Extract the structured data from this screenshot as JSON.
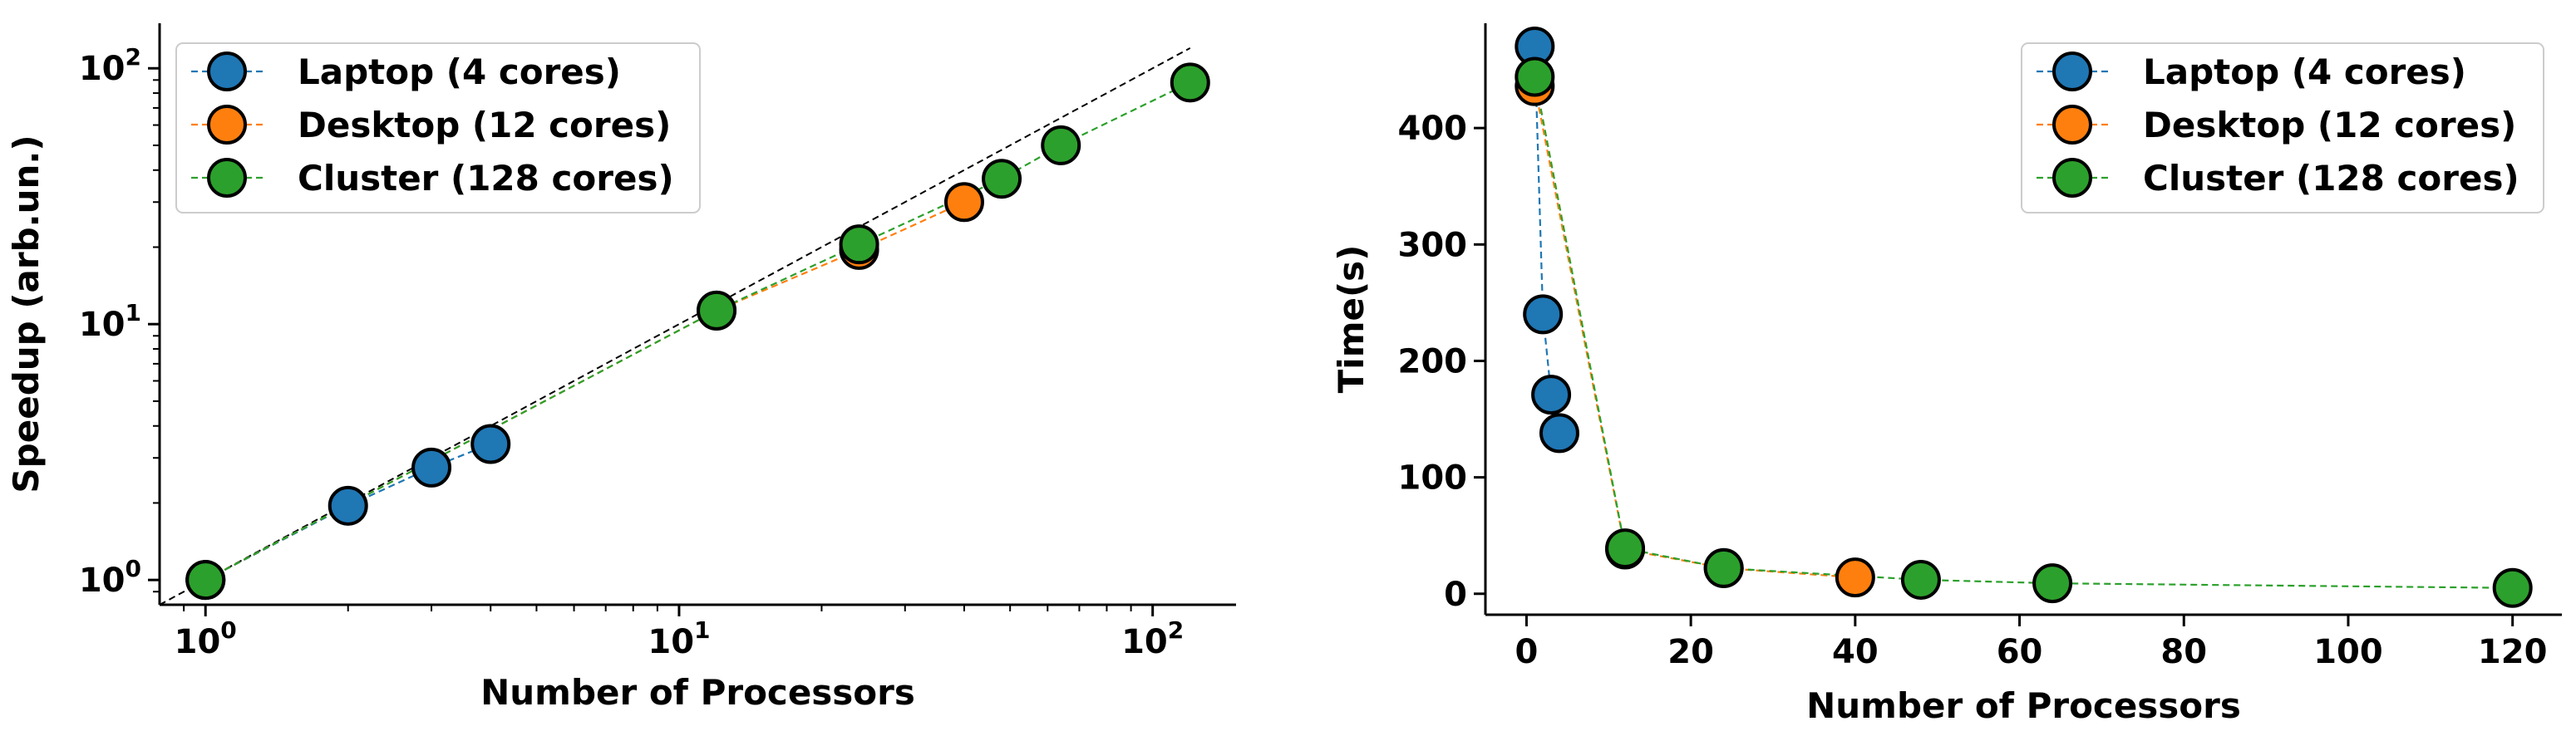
{
  "chart_data": [
    {
      "type": "line",
      "xscale": "log",
      "yscale": "log",
      "xlabel": "Number of Processors",
      "ylabel": "Speedup (arb.un.)",
      "xlim": [
        0.8,
        150
      ],
      "ylim": [
        0.8,
        150
      ],
      "x_ticks": [
        {
          "base": "10",
          "exp": "0",
          "value": 1
        },
        {
          "base": "10",
          "exp": "1",
          "value": 10
        },
        {
          "base": "10",
          "exp": "2",
          "value": 100
        }
      ],
      "y_ticks": [
        {
          "base": "10",
          "exp": "0",
          "value": 1
        },
        {
          "base": "10",
          "exp": "1",
          "value": 10
        },
        {
          "base": "10",
          "exp": "2",
          "value": 100
        }
      ],
      "reference_line": {
        "style": "dashed",
        "color": "#000000",
        "from": [
          0.8,
          0.8
        ],
        "to": [
          120,
          120
        ]
      },
      "legend_position": "upper-left",
      "series": [
        {
          "name": "Laptop (4 cores)",
          "color": "#1f77b4",
          "x": [
            1,
            2,
            3,
            4
          ],
          "y": [
            1.0,
            1.95,
            2.75,
            3.4
          ]
        },
        {
          "name": "Desktop (12 cores)",
          "color": "#ff7f0e",
          "x": [
            1,
            12,
            24,
            40
          ],
          "y": [
            1.0,
            11.3,
            19.5,
            30.0
          ]
        },
        {
          "name": "Cluster (128 cores)",
          "color": "#2ca02c",
          "x": [
            1,
            12,
            24,
            48,
            64,
            120
          ],
          "y": [
            1.0,
            11.3,
            20.5,
            37.0,
            50.0,
            88.0
          ]
        }
      ]
    },
    {
      "type": "line",
      "xscale": "linear",
      "yscale": "linear",
      "xlabel": "Number of Processors",
      "ylabel": "Time(s)",
      "xlim": [
        -5,
        126
      ],
      "ylim": [
        -18,
        490
      ],
      "x_ticks": [
        "0",
        "20",
        "40",
        "60",
        "80",
        "100",
        "120"
      ],
      "y_ticks": [
        "0",
        "100",
        "200",
        "300",
        "400"
      ],
      "legend_position": "upper-right",
      "series": [
        {
          "name": "Laptop (4 cores)",
          "color": "#1f77b4",
          "x": [
            1,
            2,
            3,
            4
          ],
          "y": [
            470,
            240,
            171,
            138
          ]
        },
        {
          "name": "Desktop (12 cores)",
          "color": "#ff7f0e",
          "x": [
            1,
            12,
            24,
            40
          ],
          "y": [
            436,
            38,
            22,
            14
          ]
        },
        {
          "name": "Cluster (128 cores)",
          "color": "#2ca02c",
          "x": [
            1,
            12,
            24,
            48,
            64,
            120
          ],
          "y": [
            444,
            39,
            22,
            12,
            9,
            5
          ]
        }
      ]
    }
  ]
}
